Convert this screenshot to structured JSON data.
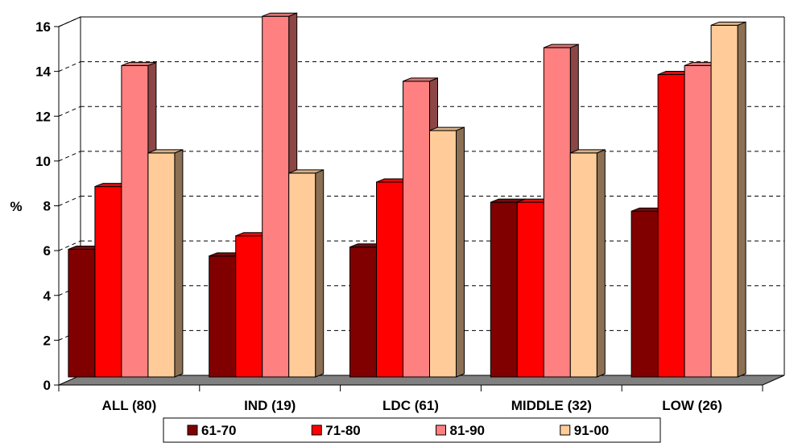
{
  "chart_data": {
    "type": "bar",
    "ylabel": "%",
    "ylim": [
      0,
      16
    ],
    "y_ticks": [
      "0",
      "2",
      "4",
      "6",
      "8",
      "10",
      "12",
      "14",
      "16"
    ],
    "categories": [
      "ALL (80)",
      "IND (19)",
      "LDC (61)",
      "MIDDLE (32)",
      "LOW (26)"
    ],
    "series": [
      {
        "name": "61-70",
        "color": "#800000",
        "values": [
          5.7,
          5.4,
          5.8,
          7.8,
          7.4
        ]
      },
      {
        "name": "71-80",
        "color": "#ff0000",
        "values": [
          8.5,
          6.3,
          8.7,
          7.8,
          13.5
        ]
      },
      {
        "name": "81-90",
        "color": "#ff8080",
        "values": [
          13.9,
          16.1,
          13.2,
          14.7,
          13.9
        ]
      },
      {
        "name": "91-00",
        "color": "#ffcc99",
        "values": [
          10.0,
          9.1,
          11.0,
          10.0,
          15.7
        ]
      }
    ],
    "grid": true,
    "three_d": true,
    "legend_position": "bottom"
  }
}
